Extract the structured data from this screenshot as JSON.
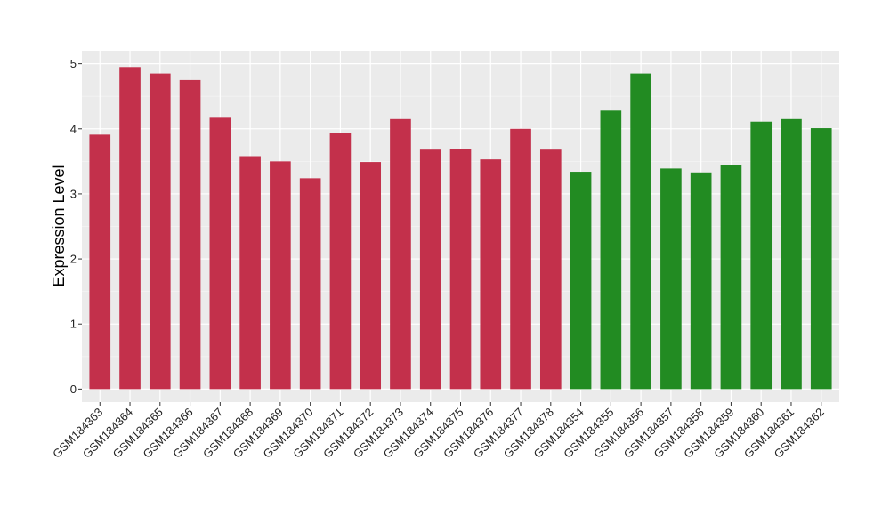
{
  "chart_data": {
    "type": "bar",
    "title": "",
    "xlabel": "",
    "ylabel": "Expression Level",
    "ylim": [
      -0.2,
      5.2
    ],
    "yticks": [
      0,
      1,
      2,
      3,
      4,
      5
    ],
    "grid": true,
    "legend": "none",
    "colors": {
      "panel": "#ebebeb",
      "grid_major": "#ffffff",
      "grid_minor": "#f4f4f4",
      "group_a": "#c3304b",
      "group_b": "#228b22"
    },
    "categories": [
      "GSM184363",
      "GSM184364",
      "GSM184365",
      "GSM184366",
      "GSM184367",
      "GSM184368",
      "GSM184369",
      "GSM184370",
      "GSM184371",
      "GSM184372",
      "GSM184373",
      "GSM184374",
      "GSM184375",
      "GSM184376",
      "GSM184377",
      "GSM184378",
      "GSM184354",
      "GSM184355",
      "GSM184356",
      "GSM184357",
      "GSM184358",
      "GSM184359",
      "GSM184360",
      "GSM184361",
      "GSM184362"
    ],
    "values": [
      3.91,
      4.95,
      4.85,
      4.75,
      4.17,
      3.58,
      3.5,
      3.24,
      3.94,
      3.49,
      4.15,
      3.68,
      3.69,
      3.53,
      4.0,
      3.68,
      3.34,
      4.28,
      4.85,
      3.39,
      3.33,
      3.45,
      4.11,
      4.15,
      4.01
    ],
    "groups": [
      "a",
      "a",
      "a",
      "a",
      "a",
      "a",
      "a",
      "a",
      "a",
      "a",
      "a",
      "a",
      "a",
      "a",
      "a",
      "a",
      "b",
      "b",
      "b",
      "b",
      "b",
      "b",
      "b",
      "b",
      "b"
    ]
  }
}
